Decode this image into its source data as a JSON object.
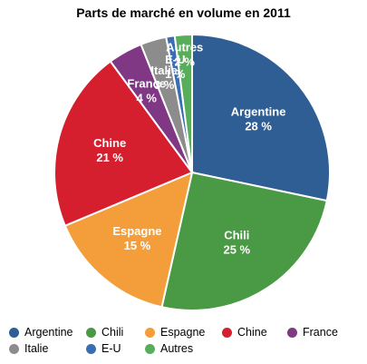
{
  "chart_data": {
    "type": "pie",
    "title": "Parts de marché en volume en 2011",
    "slices": [
      {
        "label": "Argentine",
        "value": 28,
        "value_label": "28 %",
        "color": "#2f5e95"
      },
      {
        "label": "Chili",
        "value": 25,
        "value_label": "25 %",
        "color": "#4a9a45"
      },
      {
        "label": "Espagne",
        "value": 15,
        "value_label": "15 %",
        "color": "#f39e3a"
      },
      {
        "label": "Chine",
        "value": 21,
        "value_label": "21 %",
        "color": "#d51f2f"
      },
      {
        "label": "France",
        "value": 4,
        "value_label": "4 %",
        "color": "#813884"
      },
      {
        "label": "Italie",
        "value": 3,
        "value_label": "3 %",
        "color": "#8c8c8c"
      },
      {
        "label": "E-U",
        "value": 1,
        "value_label": "1 %",
        "color": "#3a6db3"
      },
      {
        "label": "Autres",
        "value": 2,
        "value_label": "2 %",
        "color": "#58ad5a"
      }
    ],
    "legend_position": "bottom"
  }
}
